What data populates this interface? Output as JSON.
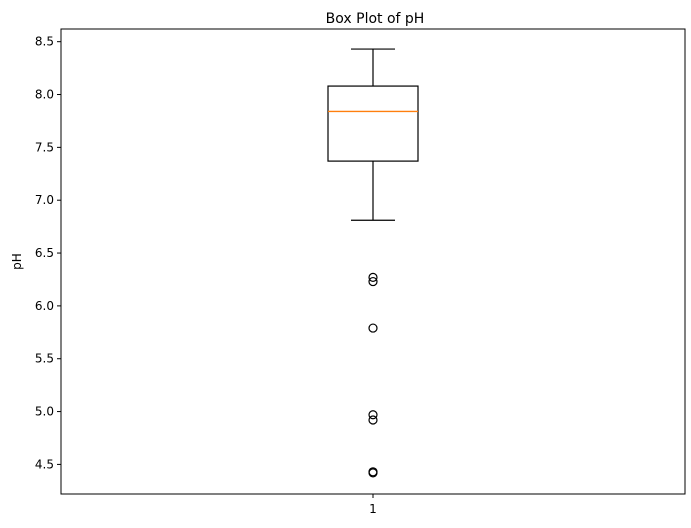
{
  "chart_data": {
    "type": "box",
    "title": "Box Plot of pH",
    "xlabel": "",
    "ylabel": "pH",
    "categories": [
      "1"
    ],
    "ylim": [
      4.22,
      8.62
    ],
    "yticks": [
      "4.5",
      "5.0",
      "5.5",
      "6.0",
      "6.5",
      "7.0",
      "7.5",
      "8.0",
      "8.5"
    ],
    "grid": false,
    "boxes": [
      {
        "category": "1",
        "whisker_low": 6.81,
        "q1": 7.37,
        "median": 7.84,
        "q3": 8.08,
        "whisker_high": 8.43,
        "outliers": [
          6.27,
          6.23,
          5.79,
          4.97,
          4.92,
          4.43,
          4.42
        ]
      }
    ],
    "colors": {
      "median": "#ff7f0e",
      "box": "#000000",
      "outlier": "#000000"
    }
  }
}
